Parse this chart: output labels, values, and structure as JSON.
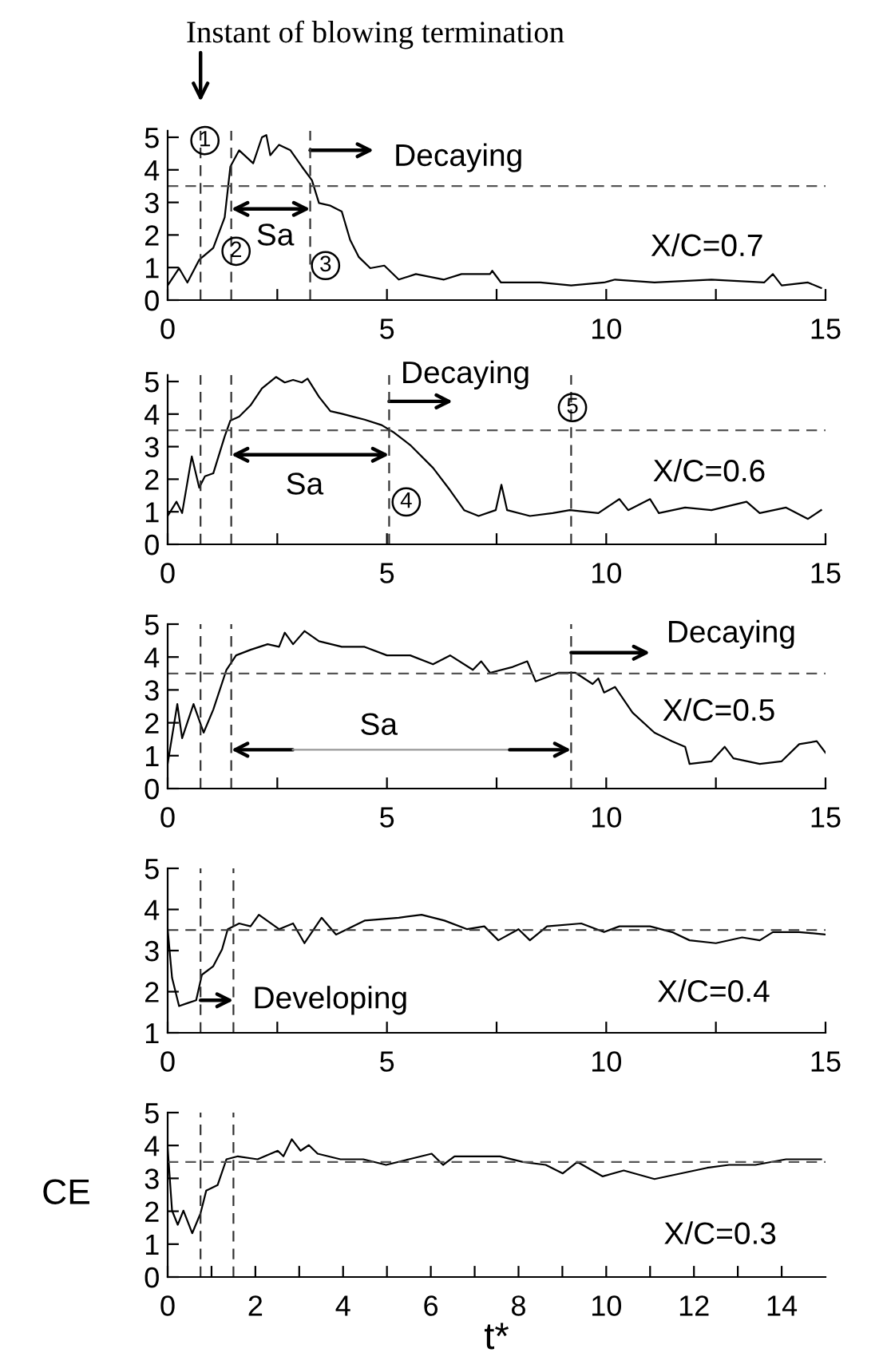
{
  "chart_data": [
    {
      "type": "line",
      "title": "Instant of blowing termination",
      "x": [
        0,
        0.26,
        0.45,
        0.72,
        1.04,
        1.3,
        1.43,
        1.63,
        1.95,
        2.15,
        2.25,
        2.34,
        2.54,
        2.8,
        3.06,
        3.29,
        3.45,
        3.71,
        3.97,
        4.16,
        4.36,
        4.62,
        4.94,
        5.27,
        5.66,
        6.3,
        6.7,
        7.35,
        7.4,
        7.6,
        8.5,
        9.2,
        9.95,
        10.2,
        11.1,
        12.4,
        13.6,
        13.8,
        14.0,
        14.6,
        14.9
      ],
      "series": [
        {
          "color": "#000000",
          "values": [
            0.45,
            0.98,
            0.54,
            1.24,
            1.6,
            2.54,
            4.1,
            4.6,
            4.2,
            5.0,
            5.07,
            4.45,
            4.77,
            4.6,
            4.1,
            3.68,
            2.98,
            2.9,
            2.72,
            1.85,
            1.32,
            0.98,
            1.06,
            0.63,
            0.8,
            0.63,
            0.8,
            0.8,
            0.9,
            0.54,
            0.54,
            0.45,
            0.54,
            0.63,
            0.54,
            0.63,
            0.54,
            0.8,
            0.45,
            0.54,
            0.37
          ]
        }
      ],
      "xlim": [
        0,
        15
      ],
      "ylim": [
        0,
        5.2
      ],
      "xticks": [
        0,
        {
          "value": 2.5,
          "label": null
        },
        5,
        {
          "value": 7.5,
          "label": null
        },
        10,
        {
          "value": 12.5,
          "label": null
        },
        15
      ],
      "yticks": [
        0,
        1,
        2,
        3,
        4,
        5
      ],
      "ref_lines": [
        {
          "axis": "y",
          "value": 3.5,
          "color": "#555555",
          "line_style": "dashed"
        },
        {
          "axis": "x",
          "value": 0.75,
          "color": "#333333",
          "line_style": "dashed"
        },
        {
          "axis": "x",
          "value": 1.45,
          "color": "#333333",
          "line_style": "dashed"
        },
        {
          "axis": "x",
          "value": 3.25,
          "color": "#333333",
          "line_style": "dashed"
        }
      ],
      "annotations": [
        "1",
        "2",
        "3",
        "Sa",
        "Decaying",
        "X/C=0.7"
      ]
    },
    {
      "type": "line",
      "x": [
        0,
        0.2,
        0.33,
        0.55,
        0.72,
        0.85,
        1.04,
        1.3,
        1.43,
        1.63,
        1.89,
        2.15,
        2.47,
        2.67,
        2.86,
        3.06,
        3.19,
        3.45,
        3.71,
        3.97,
        4.23,
        4.49,
        4.88,
        5.14,
        5.53,
        6.05,
        6.44,
        6.76,
        7.09,
        7.48,
        7.61,
        7.74,
        8.26,
        8.78,
        9.17,
        9.82,
        10.3,
        10.5,
        11.0,
        11.2,
        11.8,
        12.4,
        13.2,
        13.5,
        14.1,
        14.6,
        14.9
      ],
      "series": [
        {
          "color": "#000000",
          "values": [
            0.87,
            1.31,
            0.96,
            2.7,
            1.74,
            2.09,
            2.18,
            3.31,
            3.8,
            3.92,
            4.27,
            4.79,
            5.14,
            4.97,
            5.05,
            4.97,
            5.09,
            4.53,
            4.09,
            4.01,
            3.92,
            3.83,
            3.66,
            3.45,
            3.05,
            2.35,
            1.66,
            1.05,
            0.87,
            1.05,
            1.83,
            1.05,
            0.87,
            0.96,
            1.05,
            0.96,
            1.39,
            1.05,
            1.39,
            0.96,
            1.13,
            1.05,
            1.31,
            0.96,
            1.13,
            0.78,
            1.05
          ]
        }
      ],
      "xlim": [
        0,
        15
      ],
      "ylim": [
        0,
        5.2
      ],
      "xticks": [
        0,
        {
          "value": 2.5,
          "label": null
        },
        5,
        {
          "value": 7.5,
          "label": null
        },
        10,
        {
          "value": 12.5,
          "label": null
        },
        15
      ],
      "yticks": [
        0,
        1,
        2,
        3,
        4,
        5
      ],
      "ref_lines": [
        {
          "axis": "y",
          "value": 3.5,
          "color": "#555555",
          "line_style": "dashed"
        },
        {
          "axis": "x",
          "value": 0.75,
          "color": "#333333",
          "line_style": "dashed"
        },
        {
          "axis": "x",
          "value": 1.45,
          "color": "#333333",
          "line_style": "dashed"
        },
        {
          "axis": "x",
          "value": 5.05,
          "color": "#333333",
          "line_style": "dashed"
        },
        {
          "axis": "x",
          "value": 9.2,
          "color": "#333333",
          "line_style": "dashed"
        }
      ],
      "annotations": [
        "Sa",
        "Decaying",
        "4",
        "5",
        "X/C=0.6"
      ]
    },
    {
      "type": "line",
      "x": [
        0,
        0.22,
        0.33,
        0.59,
        0.82,
        1.04,
        1.34,
        1.56,
        1.89,
        2.28,
        2.54,
        2.67,
        2.86,
        3.12,
        3.45,
        3.97,
        4.49,
        5.0,
        5.53,
        6.05,
        6.44,
        6.96,
        7.15,
        7.35,
        7.87,
        8.2,
        8.39,
        8.91,
        9.3,
        9.69,
        9.82,
        9.95,
        10.2,
        10.6,
        11.1,
        11.5,
        11.8,
        11.9,
        12.4,
        12.7,
        12.9,
        13.5,
        14.0,
        14.4,
        14.8,
        15.0
      ],
      "series": [
        {
          "color": "#000000",
          "values": [
            0.75,
            2.57,
            1.53,
            2.57,
            1.7,
            2.4,
            3.61,
            4.05,
            4.22,
            4.39,
            4.31,
            4.74,
            4.39,
            4.79,
            4.48,
            4.31,
            4.31,
            4.05,
            4.05,
            3.78,
            4.05,
            3.61,
            3.87,
            3.52,
            3.7,
            3.87,
            3.26,
            3.52,
            3.52,
            3.18,
            3.35,
            2.92,
            3.09,
            2.31,
            1.7,
            1.44,
            1.27,
            0.75,
            0.83,
            1.27,
            0.92,
            0.75,
            0.83,
            1.35,
            1.44,
            1.09
          ]
        }
      ],
      "xlim": [
        0,
        15
      ],
      "ylim": [
        0,
        5
      ],
      "xticks": [
        0,
        {
          "value": 2.5,
          "label": null
        },
        5,
        {
          "value": 7.5,
          "label": null
        },
        10,
        {
          "value": 12.5,
          "label": null
        },
        15
      ],
      "yticks": [
        0,
        1,
        2,
        3,
        4,
        5
      ],
      "ref_lines": [
        {
          "axis": "y",
          "value": 3.5,
          "color": "#555555",
          "line_style": "dashed"
        },
        {
          "axis": "x",
          "value": 0.75,
          "color": "#333333",
          "line_style": "dashed"
        },
        {
          "axis": "x",
          "value": 1.45,
          "color": "#333333",
          "line_style": "dashed"
        },
        {
          "axis": "x",
          "value": 9.2,
          "color": "#333333",
          "line_style": "dashed"
        }
      ],
      "annotations": [
        "Sa",
        "Decaying",
        "X/C=0.5"
      ]
    },
    {
      "type": "line",
      "x": [
        0,
        0.1,
        0.26,
        0.45,
        0.65,
        0.78,
        1.04,
        1.24,
        1.37,
        1.63,
        1.89,
        2.08,
        2.54,
        2.86,
        3.12,
        3.51,
        3.84,
        4.49,
        5.27,
        5.79,
        6.31,
        6.83,
        7.22,
        7.54,
        8.0,
        8.26,
        8.65,
        9.43,
        9.95,
        10.3,
        11.0,
        11.5,
        11.9,
        12.5,
        13.1,
        13.5,
        13.8,
        14.4,
        15.0
      ],
      "series": [
        {
          "color": "#000000",
          "values": [
            3.52,
            2.34,
            1.65,
            1.72,
            1.79,
            2.41,
            2.62,
            3.03,
            3.52,
            3.66,
            3.59,
            3.87,
            3.52,
            3.66,
            3.18,
            3.8,
            3.39,
            3.73,
            3.8,
            3.87,
            3.73,
            3.52,
            3.59,
            3.25,
            3.52,
            3.25,
            3.59,
            3.66,
            3.45,
            3.59,
            3.59,
            3.45,
            3.25,
            3.18,
            3.32,
            3.25,
            3.45,
            3.45,
            3.39
          ]
        }
      ],
      "xlim": [
        0,
        15
      ],
      "ylim": [
        1,
        5
      ],
      "xticks": [
        0,
        {
          "value": 2.5,
          "label": null
        },
        5,
        {
          "value": 7.5,
          "label": null
        },
        10,
        {
          "value": 12.5,
          "label": null
        },
        15
      ],
      "yticks": [
        1,
        2,
        3,
        4,
        5
      ],
      "ref_lines": [
        {
          "axis": "y",
          "value": 3.5,
          "color": "#333333",
          "line_style": "dashed"
        },
        {
          "axis": "x",
          "value": 0.75,
          "color": "#333333",
          "line_style": "dashed"
        },
        {
          "axis": "x",
          "value": 1.5,
          "color": "#333333",
          "line_style": "dashed"
        }
      ],
      "annotations": [
        "Developing",
        "X/C=0.4"
      ]
    },
    {
      "type": "line",
      "xlabel": "t*",
      "ylabel": "CE",
      "x": [
        0,
        0.1,
        0.23,
        0.36,
        0.56,
        0.75,
        0.88,
        1.14,
        1.34,
        1.6,
        2.05,
        2.51,
        2.64,
        2.83,
        3.03,
        3.22,
        3.42,
        3.94,
        4.46,
        4.98,
        5.5,
        6.02,
        6.28,
        6.54,
        7.19,
        7.58,
        8.1,
        8.62,
        9.01,
        9.34,
        9.92,
        10.4,
        11.1,
        11.7,
        12.3,
        12.8,
        13.4,
        14.1,
        14.6,
        14.9
      ],
      "series": [
        {
          "color": "#000000",
          "values": [
            3.93,
            2.02,
            1.59,
            2.02,
            1.33,
            1.94,
            2.63,
            2.8,
            3.58,
            3.67,
            3.58,
            3.84,
            3.67,
            4.19,
            3.84,
            4.01,
            3.75,
            3.58,
            3.58,
            3.41,
            3.58,
            3.75,
            3.41,
            3.67,
            3.67,
            3.67,
            3.5,
            3.41,
            3.15,
            3.5,
            3.06,
            3.24,
            2.98,
            3.15,
            3.32,
            3.41,
            3.41,
            3.58,
            3.58,
            3.58
          ]
        }
      ],
      "xlim": [
        0,
        15
      ],
      "ylim": [
        0,
        5
      ],
      "xticks": [
        0,
        {
          "value": 1,
          "label": null
        },
        2,
        {
          "value": 3,
          "label": null
        },
        4,
        {
          "value": 5,
          "label": null
        },
        6,
        {
          "value": 7,
          "label": null
        },
        8,
        {
          "value": 9,
          "label": null
        },
        10,
        {
          "value": 11,
          "label": null
        },
        12,
        {
          "value": 13,
          "label": null
        },
        14
      ],
      "yticks": [
        0,
        1,
        2,
        3,
        4,
        5
      ],
      "ref_lines": [
        {
          "axis": "y",
          "value": 3.5,
          "color": "#555555",
          "line_style": "dashed"
        },
        {
          "axis": "x",
          "value": 0.75,
          "color": "#333333",
          "line_style": "dashed"
        },
        {
          "axis": "x",
          "value": 1.5,
          "color": "#333333",
          "line_style": "dashed"
        }
      ],
      "annotations": [
        "X/C=0.3"
      ]
    }
  ]
}
